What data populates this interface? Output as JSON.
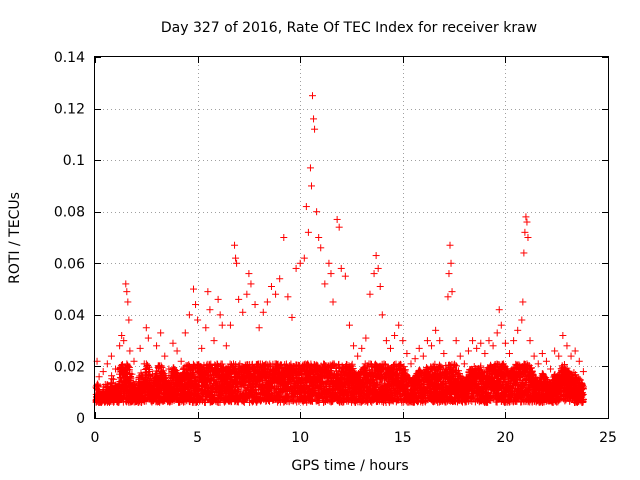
{
  "chart_data": {
    "type": "scatter",
    "title": "Day 327 of 2016, Rate Of TEC Index for receiver kraw",
    "xlabel": "GPS time / hours",
    "ylabel": "ROTI / TECUs",
    "xlim": [
      0,
      25
    ],
    "ylim": [
      0,
      0.14
    ],
    "xticks": [
      0,
      5,
      10,
      15,
      20,
      25
    ],
    "xtick_labels": [
      "0",
      "5",
      "10",
      "15",
      "20",
      "25"
    ],
    "yticks": [
      0,
      0.02,
      0.04,
      0.06,
      0.08,
      0.1,
      0.12,
      0.14
    ],
    "ytick_labels": [
      "0",
      "0.02",
      "0.04",
      "0.06",
      "0.08",
      "0.1",
      "0.12",
      "0.14"
    ],
    "grid": true,
    "marker": "+",
    "color": "#ff0000",
    "series": [
      {
        "name": "ROTI",
        "points": [
          [
            0.05,
            0.012
          ],
          [
            0.1,
            0.022
          ],
          [
            0.2,
            0.016
          ],
          [
            0.3,
            0.009
          ],
          [
            0.4,
            0.018
          ],
          [
            0.5,
            0.013
          ],
          [
            0.6,
            0.021
          ],
          [
            0.7,
            0.011
          ],
          [
            0.8,
            0.024
          ],
          [
            0.9,
            0.015
          ],
          [
            1.0,
            0.019
          ],
          [
            1.1,
            0.012
          ],
          [
            1.2,
            0.028
          ],
          [
            1.3,
            0.032
          ],
          [
            1.4,
            0.03
          ],
          [
            1.5,
            0.052
          ],
          [
            1.55,
            0.049
          ],
          [
            1.6,
            0.045
          ],
          [
            1.65,
            0.038
          ],
          [
            1.7,
            0.026
          ],
          [
            1.8,
            0.017
          ],
          [
            1.9,
            0.022
          ],
          [
            2.0,
            0.014
          ],
          [
            2.2,
            0.027
          ],
          [
            2.4,
            0.021
          ],
          [
            2.5,
            0.035
          ],
          [
            2.6,
            0.031
          ],
          [
            2.8,
            0.017
          ],
          [
            3.0,
            0.028
          ],
          [
            3.2,
            0.033
          ],
          [
            3.4,
            0.024
          ],
          [
            3.6,
            0.019
          ],
          [
            3.8,
            0.029
          ],
          [
            4.0,
            0.026
          ],
          [
            4.2,
            0.022
          ],
          [
            4.4,
            0.033
          ],
          [
            4.6,
            0.04
          ],
          [
            4.8,
            0.05
          ],
          [
            4.9,
            0.044
          ],
          [
            5.0,
            0.038
          ],
          [
            5.2,
            0.027
          ],
          [
            5.4,
            0.035
          ],
          [
            5.5,
            0.049
          ],
          [
            5.6,
            0.042
          ],
          [
            5.8,
            0.03
          ],
          [
            6.0,
            0.046
          ],
          [
            6.1,
            0.04
          ],
          [
            6.2,
            0.036
          ],
          [
            6.4,
            0.028
          ],
          [
            6.6,
            0.036
          ],
          [
            6.8,
            0.067
          ],
          [
            6.85,
            0.062
          ],
          [
            6.9,
            0.06
          ],
          [
            7.0,
            0.046
          ],
          [
            7.2,
            0.041
          ],
          [
            7.4,
            0.048
          ],
          [
            7.5,
            0.056
          ],
          [
            7.6,
            0.052
          ],
          [
            7.8,
            0.044
          ],
          [
            8.0,
            0.035
          ],
          [
            8.2,
            0.041
          ],
          [
            8.4,
            0.045
          ],
          [
            8.6,
            0.051
          ],
          [
            8.8,
            0.048
          ],
          [
            9.0,
            0.054
          ],
          [
            9.2,
            0.07
          ],
          [
            9.4,
            0.047
          ],
          [
            9.6,
            0.039
          ],
          [
            9.8,
            0.058
          ],
          [
            10.0,
            0.06
          ],
          [
            10.2,
            0.062
          ],
          [
            10.3,
            0.082
          ],
          [
            10.4,
            0.072
          ],
          [
            10.5,
            0.097
          ],
          [
            10.55,
            0.09
          ],
          [
            10.6,
            0.125
          ],
          [
            10.65,
            0.116
          ],
          [
            10.7,
            0.112
          ],
          [
            10.8,
            0.08
          ],
          [
            10.9,
            0.07
          ],
          [
            11.0,
            0.066
          ],
          [
            11.2,
            0.052
          ],
          [
            11.4,
            0.06
          ],
          [
            11.5,
            0.056
          ],
          [
            11.6,
            0.045
          ],
          [
            11.8,
            0.077
          ],
          [
            11.9,
            0.074
          ],
          [
            12.0,
            0.058
          ],
          [
            12.2,
            0.055
          ],
          [
            12.4,
            0.036
          ],
          [
            12.6,
            0.028
          ],
          [
            12.8,
            0.024
          ],
          [
            13.0,
            0.027
          ],
          [
            13.2,
            0.031
          ],
          [
            13.4,
            0.048
          ],
          [
            13.6,
            0.056
          ],
          [
            13.7,
            0.063
          ],
          [
            13.8,
            0.058
          ],
          [
            13.9,
            0.051
          ],
          [
            14.0,
            0.04
          ],
          [
            14.2,
            0.03
          ],
          [
            14.4,
            0.027
          ],
          [
            14.6,
            0.032
          ],
          [
            14.8,
            0.036
          ],
          [
            15.0,
            0.03
          ],
          [
            15.2,
            0.025
          ],
          [
            15.4,
            0.021
          ],
          [
            15.6,
            0.023
          ],
          [
            15.8,
            0.027
          ],
          [
            16.0,
            0.024
          ],
          [
            16.2,
            0.03
          ],
          [
            16.4,
            0.028
          ],
          [
            16.6,
            0.034
          ],
          [
            16.8,
            0.03
          ],
          [
            17.0,
            0.025
          ],
          [
            17.2,
            0.047
          ],
          [
            17.25,
            0.056
          ],
          [
            17.3,
            0.067
          ],
          [
            17.35,
            0.06
          ],
          [
            17.4,
            0.049
          ],
          [
            17.6,
            0.03
          ],
          [
            17.8,
            0.024
          ],
          [
            18.0,
            0.021
          ],
          [
            18.2,
            0.026
          ],
          [
            18.4,
            0.03
          ],
          [
            18.6,
            0.027
          ],
          [
            18.8,
            0.029
          ],
          [
            19.0,
            0.025
          ],
          [
            19.2,
            0.03
          ],
          [
            19.4,
            0.028
          ],
          [
            19.6,
            0.033
          ],
          [
            19.7,
            0.042
          ],
          [
            19.8,
            0.036
          ],
          [
            20.0,
            0.029
          ],
          [
            20.2,
            0.025
          ],
          [
            20.4,
            0.03
          ],
          [
            20.6,
            0.034
          ],
          [
            20.8,
            0.038
          ],
          [
            20.85,
            0.045
          ],
          [
            20.9,
            0.064
          ],
          [
            20.95,
            0.072
          ],
          [
            21.0,
            0.078
          ],
          [
            21.05,
            0.076
          ],
          [
            21.1,
            0.07
          ],
          [
            21.2,
            0.03
          ],
          [
            21.4,
            0.024
          ],
          [
            21.6,
            0.021
          ],
          [
            21.8,
            0.025
          ],
          [
            22.0,
            0.022
          ],
          [
            22.2,
            0.019
          ],
          [
            22.4,
            0.026
          ],
          [
            22.6,
            0.024
          ],
          [
            22.8,
            0.032
          ],
          [
            23.0,
            0.028
          ],
          [
            23.2,
            0.024
          ],
          [
            23.4,
            0.026
          ],
          [
            23.6,
            0.022
          ],
          [
            23.8,
            0.018
          ]
        ]
      }
    ]
  }
}
